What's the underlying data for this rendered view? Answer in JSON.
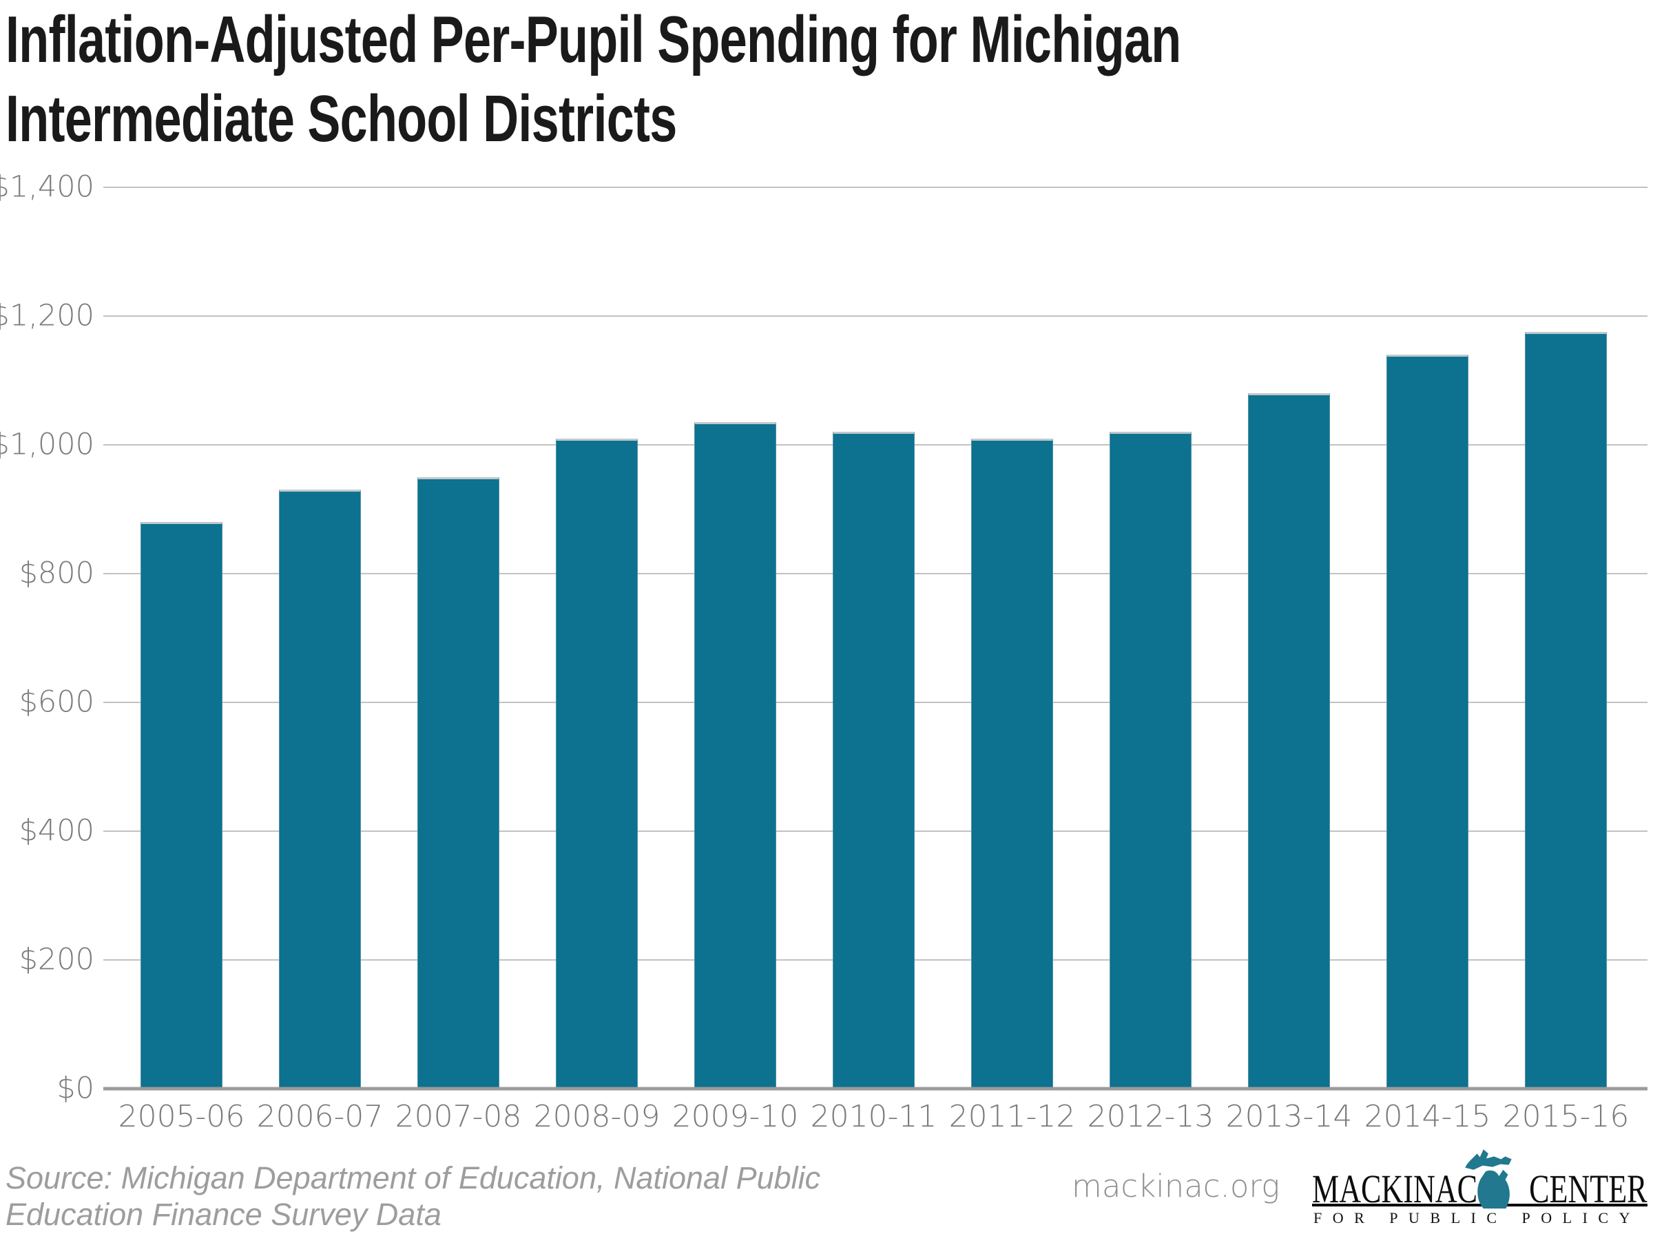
{
  "title": {
    "line1": "Inflation-Adjusted Per-Pupil Spending for Michigan",
    "line2": "Intermediate School Districts"
  },
  "chart_data": {
    "type": "bar",
    "title": "Inflation-Adjusted Per-Pupil Spending for Michigan Intermediate School Districts",
    "categories": [
      "2005-06",
      "2006-07",
      "2007-08",
      "2008-09",
      "2009-10",
      "2010-11",
      "2011-12",
      "2012-13",
      "2013-14",
      "2014-15",
      "2015-16"
    ],
    "values": [
      880,
      930,
      950,
      1010,
      1035,
      1020,
      1010,
      1020,
      1080,
      1140,
      1175
    ],
    "xlabel": "",
    "ylabel": "",
    "ylim": [
      0,
      1400
    ],
    "ytick_step": 200,
    "ytick_labels": [
      "$0",
      "$200",
      "$400",
      "$600",
      "$800",
      "$1,000",
      "$1,200",
      "$1,400"
    ],
    "grid": true,
    "legend": "none",
    "bar_color": "#0C728F",
    "gridline_color": "#c2c2c2",
    "axis_line_color": "#9b9b9b",
    "tick_label_color": "#7b7b7b"
  },
  "footer": {
    "source_line1": "Source: Michigan Department of Education, National Public",
    "source_line2": "Education Finance Survey Data",
    "website": "mackinac.org",
    "logo": {
      "word_left": "MACKINAC",
      "word_right": "CENTER",
      "tagline": "FOR PUBLIC POLICY",
      "state_color": "#22788E"
    }
  }
}
